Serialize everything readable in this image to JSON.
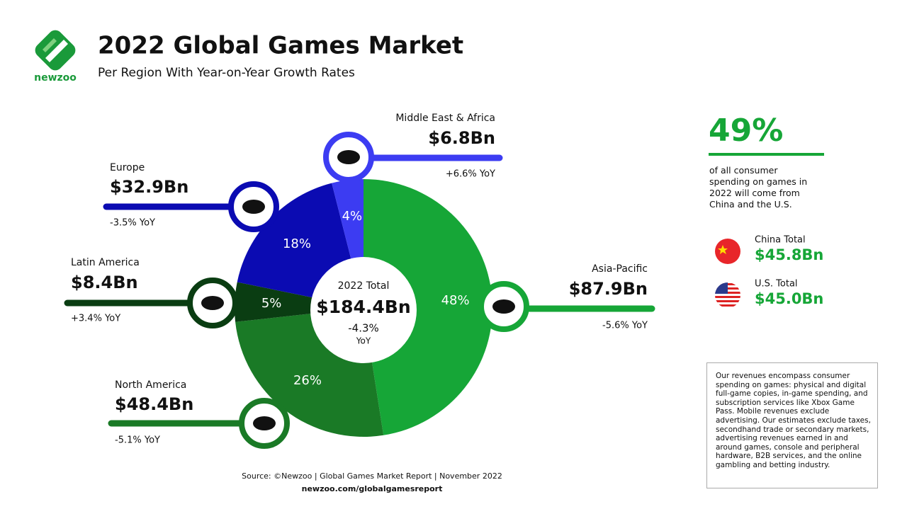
{
  "logo": "newzoo",
  "header": {
    "title": "2022 Global Games Market",
    "subtitle": "Per Region With Year-on-Year Growth Rates"
  },
  "chart_data": {
    "type": "pie",
    "categories": [
      "Asia-Pacific",
      "North America",
      "Latin America",
      "Europe",
      "Middle East & Africa"
    ],
    "values": [
      48,
      26,
      5,
      18,
      4
    ],
    "value_labels": [
      "48%",
      "26%",
      "5%",
      "18%",
      "4%"
    ],
    "colors": [
      "#16a637",
      "#1a7a26",
      "#0a3d12",
      "#0b0bb2",
      "#3c3cf2"
    ],
    "revenues": [
      "$87.9Bn",
      "$48.4Bn",
      "$8.4Bn",
      "$32.9Bn",
      "$6.8Bn"
    ],
    "yoy": [
      "-5.6% YoY",
      "-5.1% YoY",
      "+3.4% YoY",
      "-3.5% YoY",
      "+6.6% YoY"
    ],
    "center": {
      "label": "2022 Total",
      "value": "$184.4Bn",
      "change": "-4.3%",
      "change_label": "YoY"
    }
  },
  "highlight": {
    "value": "49%",
    "text": "of all consumer spending on games in 2022 will come from China and the U.S."
  },
  "countries": [
    {
      "name": "China Total",
      "value": "$45.8Bn"
    },
    {
      "name": "U.S. Total",
      "value": "$45.0Bn"
    }
  ],
  "note": "Our revenues encompass consumer spending on games: physical and digital full-game copies, in-game spending, and subscription services like Xbox Game Pass. Mobile revenues exclude advertising. Our estimates exclude taxes, secondhand trade or secondary markets, advertising revenues earned in and around games, console and peripheral hardware, B2B services, and the online gambling and betting industry.",
  "footer": {
    "source": "Source: ©Newzoo | Global Games Market Report | November 2022",
    "url": "newzoo.com/globalgamesreport"
  }
}
